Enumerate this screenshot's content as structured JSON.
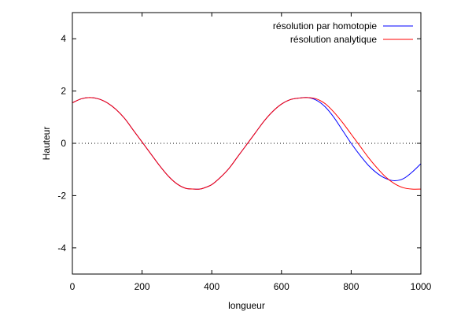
{
  "chart_data": {
    "type": "line",
    "title": "",
    "xlabel": "longueur",
    "ylabel": "Hauteur",
    "xlim": [
      0,
      1000
    ],
    "ylim": [
      -5,
      5
    ],
    "xticks": [
      0,
      200,
      400,
      600,
      800,
      1000
    ],
    "yticks": [
      -4,
      -2,
      0,
      2,
      4
    ],
    "zero_line": "dotted",
    "grid": false,
    "legend_position": "top-right",
    "x": [
      0,
      25,
      50,
      75,
      100,
      125,
      150,
      175,
      200,
      225,
      250,
      275,
      300,
      325,
      350,
      365,
      375,
      400,
      425,
      450,
      475,
      500,
      525,
      550,
      575,
      600,
      625,
      650,
      675,
      700,
      725,
      750,
      775,
      800,
      825,
      850,
      875,
      900,
      925,
      950,
      975,
      1000
    ],
    "series": [
      {
        "name": "résolution par homotopie",
        "color": "#0000ff",
        "values": [
          1.55,
          1.7,
          1.75,
          1.7,
          1.55,
          1.3,
          0.95,
          0.5,
          0.05,
          -0.4,
          -0.85,
          -1.25,
          -1.55,
          -1.72,
          -1.75,
          -1.75,
          -1.72,
          -1.58,
          -1.3,
          -0.95,
          -0.5,
          -0.05,
          0.4,
          0.85,
          1.22,
          1.5,
          1.67,
          1.73,
          1.75,
          1.65,
          1.4,
          1.0,
          0.5,
          0.0,
          -0.45,
          -0.85,
          -1.15,
          -1.35,
          -1.43,
          -1.35,
          -1.1,
          -0.78
        ]
      },
      {
        "name": "résolution analytique",
        "color": "#ff0000",
        "values": [
          1.55,
          1.7,
          1.75,
          1.7,
          1.55,
          1.3,
          0.95,
          0.5,
          0.05,
          -0.4,
          -0.85,
          -1.25,
          -1.55,
          -1.72,
          -1.75,
          -1.75,
          -1.72,
          -1.58,
          -1.3,
          -0.95,
          -0.5,
          -0.05,
          0.4,
          0.85,
          1.22,
          1.5,
          1.67,
          1.73,
          1.75,
          1.7,
          1.52,
          1.2,
          0.8,
          0.35,
          -0.1,
          -0.55,
          -0.95,
          -1.3,
          -1.55,
          -1.7,
          -1.75,
          -1.75
        ]
      }
    ]
  }
}
